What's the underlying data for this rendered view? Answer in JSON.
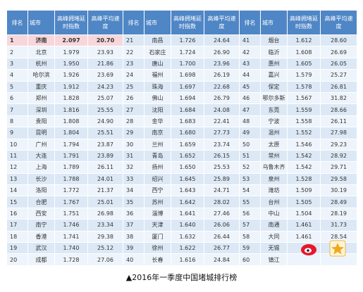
{
  "table": {
    "headers": [
      "排名",
      "城市",
      "高峰拥堵延时指数",
      "高峰平均速度"
    ],
    "rows": [
      [
        "1",
        "济南",
        "2.097",
        "20.70",
        "21",
        "南昌",
        "1.726",
        "24.64",
        "41",
        "烟台",
        "1.612",
        "28.60"
      ],
      [
        "2",
        "北京",
        "1.979",
        "23.93",
        "22",
        "石家庄",
        "1.724",
        "26.90",
        "42",
        "临沂",
        "1.608",
        "26.69"
      ],
      [
        "3",
        "杭州",
        "1.950",
        "21.86",
        "23",
        "唐山",
        "1.700",
        "23.96",
        "43",
        "惠州",
        "1.605",
        "26.05"
      ],
      [
        "4",
        "哈尔滨",
        "1.926",
        "23.69",
        "24",
        "福州",
        "1.698",
        "26.19",
        "44",
        "嘉兴",
        "1.579",
        "25.27"
      ],
      [
        "5",
        "重庆",
        "1.912",
        "24.23",
        "25",
        "珠海",
        "1.697",
        "22.68",
        "45",
        "保定",
        "1.578",
        "26.81"
      ],
      [
        "6",
        "郑州",
        "1.828",
        "25.07",
        "26",
        "佛山",
        "1.694",
        "26.79",
        "46",
        "鄂尔多斯",
        "1.567",
        "31.82"
      ],
      [
        "7",
        "深圳",
        "1.816",
        "25.55",
        "27",
        "沈阳",
        "1.684",
        "24.08",
        "47",
        "东莞",
        "1.559",
        "28.66"
      ],
      [
        "8",
        "贵阳",
        "1.808",
        "24.90",
        "28",
        "金华",
        "1.683",
        "22.41",
        "48",
        "宁波",
        "1.558",
        "26.11"
      ],
      [
        "9",
        "昆明",
        "1.804",
        "25.51",
        "29",
        "南京",
        "1.680",
        "27.73",
        "49",
        "温州",
        "1.552",
        "27.98"
      ],
      [
        "10",
        "广州",
        "1.794",
        "23.87",
        "30",
        "兰州",
        "1.659",
        "23.74",
        "50",
        "太原",
        "1.546",
        "29.23"
      ],
      [
        "11",
        "大连",
        "1.791",
        "23.89",
        "31",
        "青岛",
        "1.652",
        "26.15",
        "51",
        "常州",
        "1.542",
        "28.92"
      ],
      [
        "12",
        "上海",
        "1.789",
        "26.11",
        "32",
        "扬州",
        "1.650",
        "25.53",
        "52",
        "乌鲁木齐",
        "1.542",
        "29.71"
      ],
      [
        "13",
        "长沙",
        "1.788",
        "24.01",
        "33",
        "绍兴",
        "1.645",
        "25.89",
        "53",
        "泉州",
        "1.528",
        "29.58"
      ],
      [
        "14",
        "洛阳",
        "1.772",
        "21.37",
        "34",
        "西宁",
        "1.643",
        "24.71",
        "54",
        "潍坊",
        "1.509",
        "30.19"
      ],
      [
        "15",
        "合肥",
        "1.767",
        "25.01",
        "35",
        "苏州",
        "1.642",
        "28.02",
        "55",
        "台州",
        "1.505",
        "28.49"
      ],
      [
        "16",
        "西安",
        "1.751",
        "26.98",
        "36",
        "淄博",
        "1.641",
        "27.46",
        "56",
        "中山",
        "1.504",
        "28.19"
      ],
      [
        "17",
        "南宁",
        "1.746",
        "23.34",
        "37",
        "天津",
        "1.640",
        "26.06",
        "57",
        "南通",
        "1.461",
        "31.73"
      ],
      [
        "18",
        "香港",
        "1.741",
        "29.38",
        "38",
        "厦门",
        "1.632",
        "26.44",
        "58",
        "大同",
        "1.461",
        "28.54"
      ],
      [
        "19",
        "武汉",
        "1.740",
        "25.12",
        "39",
        "徐州",
        "1.622",
        "26.77",
        "59",
        "无锡"
      ],
      [
        "20",
        "成都",
        "1.728",
        "27.06",
        "40",
        "长春",
        "1.616",
        "24.84",
        "60",
        "镇江"
      ]
    ]
  },
  "caption": "▲2016年一季度中国堵城排行榜"
}
